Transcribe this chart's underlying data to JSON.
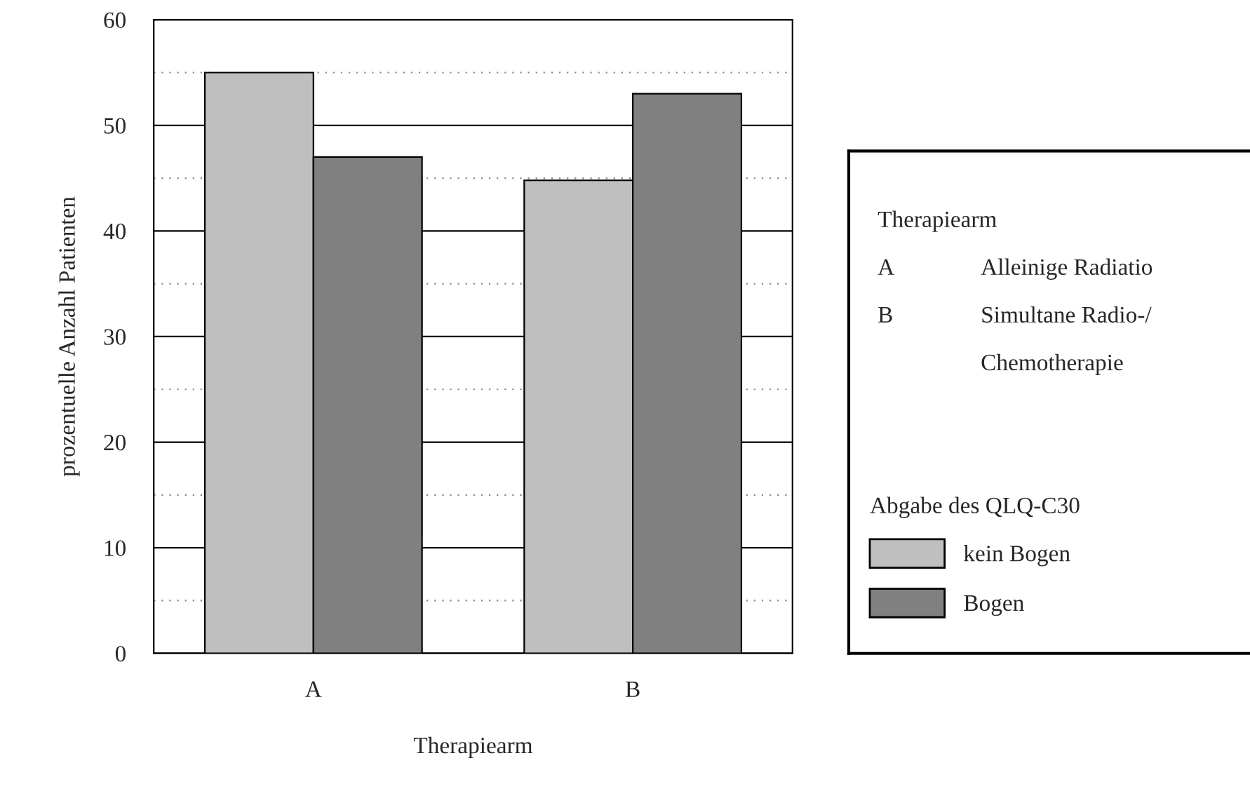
{
  "chart_data": {
    "type": "bar",
    "xlabel": "Therapiearm",
    "ylabel": "prozentuelle Anzahl Patienten",
    "categories": [
      "A",
      "B"
    ],
    "series": [
      {
        "name": "kein Bogen",
        "color": "#bfbfbf",
        "values": [
          55,
          44.8
        ]
      },
      {
        "name": "Bogen",
        "color": "#808080",
        "values": [
          47,
          53
        ]
      }
    ],
    "ylim": [
      0,
      60
    ],
    "yticks": [
      0,
      {
        "value": 5,
        "label": null
      },
      10,
      {
        "value": 15,
        "label": null
      },
      20,
      {
        "value": 25,
        "label": null
      },
      30,
      {
        "value": 35,
        "label": null
      },
      40,
      {
        "value": 45,
        "label": null
      },
      50,
      {
        "value": 55,
        "label": null
      },
      60
    ],
    "grid": "y",
    "legend": "right",
    "legend_title": "Abgabe des QLQ-C30",
    "annotations": [
      "Therapiearm",
      "A",
      "Alleinige Radiatio",
      "B",
      "Simultane Radio-/\nChemotherapie"
    ]
  }
}
